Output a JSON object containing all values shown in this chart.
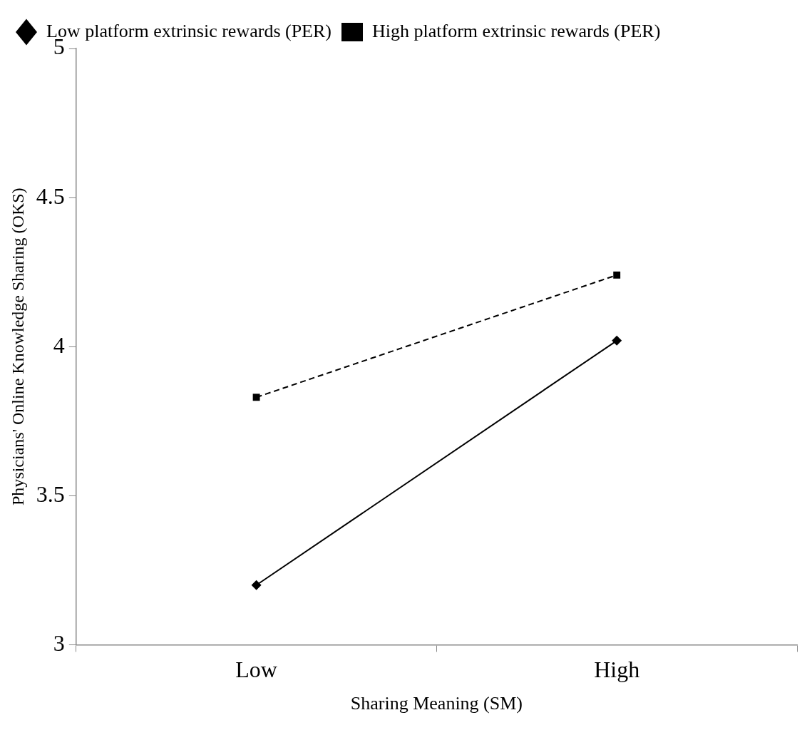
{
  "chart_data": {
    "type": "line",
    "xlabel": "Sharing Meaning (SM)",
    "ylabel": "Physicians' Online Knowledge Sharing (OKS)",
    "categories": [
      "Low",
      "High"
    ],
    "series": [
      {
        "name": "Low platform extrinsic rewards (PER)",
        "color": "#000000",
        "values": [
          3.2,
          4.02
        ],
        "marker": "diamond",
        "line_style": "solid"
      },
      {
        "name": "High platform extrinsic rewards (PER)",
        "color": "#000000",
        "values": [
          3.83,
          4.24
        ],
        "marker": "square",
        "line_style": "dashed"
      }
    ],
    "ylim": [
      3,
      5
    ],
    "yticks": [
      3,
      3.5,
      4,
      4.5,
      5
    ],
    "grid": false,
    "legend": "top left"
  }
}
